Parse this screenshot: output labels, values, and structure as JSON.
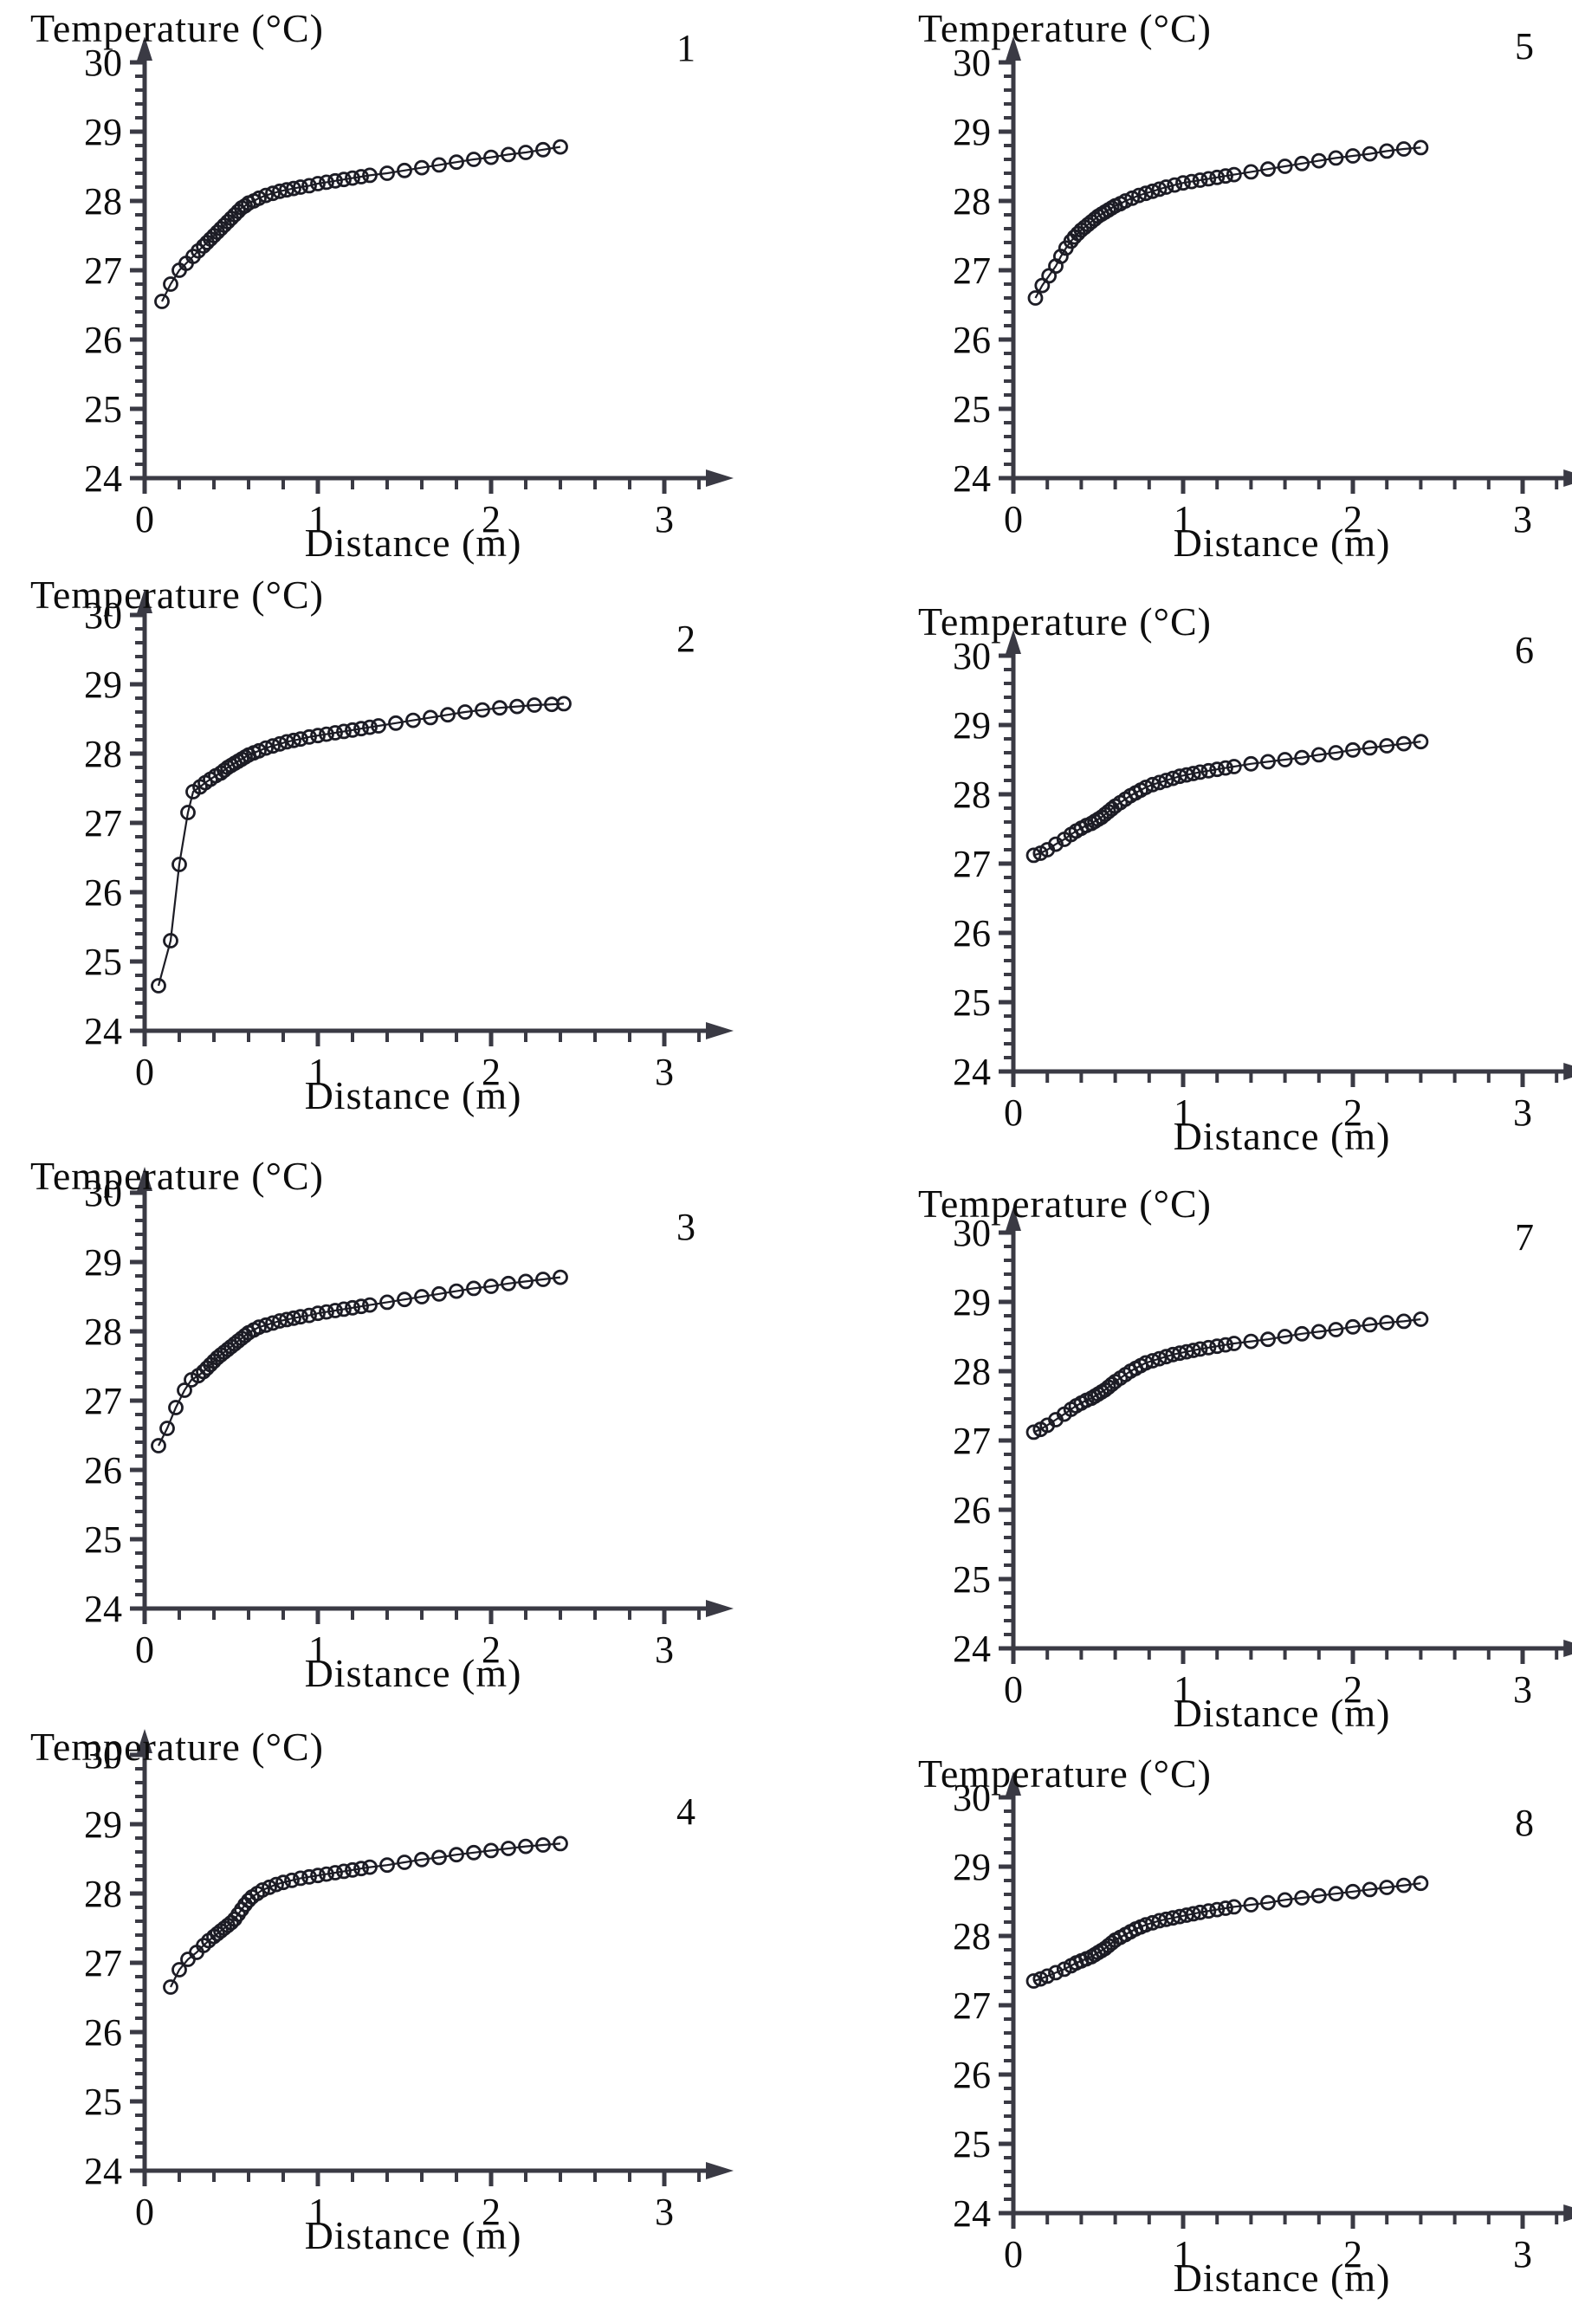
{
  "figure": {
    "ylabel": "Temperature (°C)",
    "xlabel": "Distance (m)",
    "axis_color": "#3a3a44",
    "marker_color": "#1c1c25",
    "text_color": "#0d0d0d",
    "y_ticks": [
      24,
      25,
      26,
      27,
      28,
      29,
      30
    ],
    "x_ticks": [
      0,
      1,
      2,
      3
    ],
    "y_minor_step": 0.2,
    "x_minor_step": 0.2,
    "ylim": [
      24,
      30.4
    ],
    "xlim": [
      0,
      3.3
    ],
    "grid": false,
    "legend": "none",
    "marker": "open-circle"
  },
  "chart_data": [
    {
      "type": "scatter",
      "line": true,
      "label": "1",
      "ylabel": "Temperature (°C)",
      "xlabel": "Distance (m)",
      "xlim": [
        0,
        3.3
      ],
      "ylim": [
        24,
        30.4
      ],
      "x": [
        0.1,
        0.15,
        0.2,
        0.24,
        0.28,
        0.31,
        0.34,
        0.36,
        0.38,
        0.4,
        0.42,
        0.44,
        0.46,
        0.48,
        0.5,
        0.52,
        0.54,
        0.56,
        0.58,
        0.6,
        0.63,
        0.66,
        0.7,
        0.74,
        0.78,
        0.82,
        0.86,
        0.9,
        0.95,
        1.0,
        1.05,
        1.1,
        1.15,
        1.2,
        1.25,
        1.3,
        1.4,
        1.5,
        1.6,
        1.7,
        1.8,
        1.9,
        2.0,
        2.1,
        2.2,
        2.3,
        2.4
      ],
      "y": [
        26.55,
        26.8,
        27.0,
        27.1,
        27.2,
        27.28,
        27.35,
        27.4,
        27.45,
        27.5,
        27.55,
        27.6,
        27.65,
        27.7,
        27.75,
        27.8,
        27.85,
        27.9,
        27.93,
        27.97,
        28.0,
        28.04,
        28.08,
        28.11,
        28.14,
        28.16,
        28.18,
        28.2,
        28.22,
        28.25,
        28.27,
        28.29,
        28.31,
        28.33,
        28.35,
        28.37,
        28.4,
        28.44,
        28.48,
        28.52,
        28.56,
        28.6,
        28.63,
        28.67,
        28.7,
        28.74,
        28.78
      ]
    },
    {
      "type": "scatter",
      "line": true,
      "label": "2",
      "ylabel": "Temperature (°C)",
      "xlabel": "Distance (m)",
      "xlim": [
        0,
        3.3
      ],
      "ylim": [
        24,
        30.4
      ],
      "x": [
        0.08,
        0.15,
        0.2,
        0.25,
        0.28,
        0.32,
        0.35,
        0.38,
        0.41,
        0.44,
        0.46,
        0.48,
        0.5,
        0.52,
        0.54,
        0.56,
        0.58,
        0.6,
        0.63,
        0.66,
        0.7,
        0.74,
        0.78,
        0.82,
        0.86,
        0.9,
        0.95,
        1.0,
        1.05,
        1.1,
        1.15,
        1.2,
        1.25,
        1.3,
        1.35,
        1.45,
        1.55,
        1.65,
        1.75,
        1.85,
        1.95,
        2.05,
        2.15,
        2.25,
        2.35,
        2.42
      ],
      "y": [
        24.65,
        25.3,
        26.4,
        27.15,
        27.45,
        27.52,
        27.58,
        27.63,
        27.68,
        27.72,
        27.76,
        27.8,
        27.83,
        27.86,
        27.89,
        27.92,
        27.95,
        27.98,
        28.01,
        28.04,
        28.08,
        28.11,
        28.14,
        28.17,
        28.19,
        28.21,
        28.24,
        28.26,
        28.28,
        28.3,
        28.32,
        28.34,
        28.36,
        28.38,
        28.4,
        28.44,
        28.48,
        28.52,
        28.56,
        28.6,
        28.63,
        28.66,
        28.68,
        28.7,
        28.71,
        28.72
      ]
    },
    {
      "type": "scatter",
      "line": true,
      "label": "3",
      "ylabel": "Temperature (°C)",
      "xlabel": "Distance (m)",
      "xlim": [
        0,
        3.3
      ],
      "ylim": [
        24,
        30.4
      ],
      "x": [
        0.08,
        0.13,
        0.18,
        0.23,
        0.27,
        0.31,
        0.34,
        0.36,
        0.38,
        0.4,
        0.42,
        0.44,
        0.46,
        0.48,
        0.5,
        0.52,
        0.54,
        0.56,
        0.58,
        0.6,
        0.63,
        0.66,
        0.7,
        0.74,
        0.78,
        0.82,
        0.86,
        0.9,
        0.95,
        1.0,
        1.05,
        1.1,
        1.15,
        1.2,
        1.25,
        1.3,
        1.4,
        1.5,
        1.6,
        1.7,
        1.8,
        1.9,
        2.0,
        2.1,
        2.2,
        2.3,
        2.4
      ],
      "y": [
        26.35,
        26.6,
        26.9,
        27.15,
        27.3,
        27.36,
        27.42,
        27.47,
        27.52,
        27.57,
        27.62,
        27.66,
        27.7,
        27.74,
        27.78,
        27.82,
        27.86,
        27.9,
        27.94,
        27.98,
        28.02,
        28.06,
        28.09,
        28.12,
        28.15,
        28.17,
        28.19,
        28.21,
        28.23,
        28.26,
        28.28,
        28.3,
        28.32,
        28.34,
        28.36,
        28.38,
        28.42,
        28.46,
        28.5,
        28.54,
        28.58,
        28.62,
        28.65,
        28.69,
        28.72,
        28.75,
        28.78
      ]
    },
    {
      "type": "scatter",
      "line": true,
      "label": "4",
      "ylabel": "Temperature (°C)",
      "xlabel": "Distance (m)",
      "xlim": [
        0,
        3.3
      ],
      "ylim": [
        24,
        30.4
      ],
      "x": [
        0.15,
        0.2,
        0.25,
        0.3,
        0.34,
        0.37,
        0.4,
        0.42,
        0.44,
        0.46,
        0.48,
        0.5,
        0.52,
        0.54,
        0.56,
        0.58,
        0.6,
        0.62,
        0.65,
        0.68,
        0.72,
        0.76,
        0.8,
        0.85,
        0.9,
        0.95,
        1.0,
        1.05,
        1.1,
        1.15,
        1.2,
        1.25,
        1.3,
        1.4,
        1.5,
        1.6,
        1.7,
        1.8,
        1.9,
        2.0,
        2.1,
        2.2,
        2.3,
        2.4
      ],
      "y": [
        26.65,
        26.9,
        27.05,
        27.15,
        27.25,
        27.32,
        27.38,
        27.42,
        27.46,
        27.5,
        27.54,
        27.58,
        27.63,
        27.7,
        27.77,
        27.84,
        27.9,
        27.95,
        28.0,
        28.05,
        28.09,
        28.13,
        28.16,
        28.19,
        28.22,
        28.24,
        28.26,
        28.28,
        28.3,
        28.32,
        28.34,
        28.36,
        28.38,
        28.41,
        28.45,
        28.49,
        28.52,
        28.56,
        28.59,
        28.62,
        28.65,
        28.68,
        28.7,
        28.72
      ]
    },
    {
      "type": "scatter",
      "line": true,
      "label": "5",
      "ylabel": "Temperature (°C)",
      "xlabel": "Distance (m)",
      "xlim": [
        0,
        3.3
      ],
      "ylim": [
        24,
        30.4
      ],
      "x": [
        0.13,
        0.17,
        0.21,
        0.25,
        0.28,
        0.31,
        0.34,
        0.36,
        0.38,
        0.4,
        0.42,
        0.44,
        0.46,
        0.48,
        0.5,
        0.52,
        0.54,
        0.56,
        0.58,
        0.6,
        0.63,
        0.66,
        0.7,
        0.74,
        0.78,
        0.82,
        0.86,
        0.9,
        0.95,
        1.0,
        1.05,
        1.1,
        1.15,
        1.2,
        1.25,
        1.3,
        1.4,
        1.5,
        1.6,
        1.7,
        1.8,
        1.9,
        2.0,
        2.1,
        2.2,
        2.3,
        2.4
      ],
      "y": [
        26.6,
        26.78,
        26.92,
        27.06,
        27.2,
        27.32,
        27.42,
        27.48,
        27.53,
        27.58,
        27.62,
        27.66,
        27.7,
        27.74,
        27.78,
        27.81,
        27.84,
        27.87,
        27.9,
        27.93,
        27.96,
        28.0,
        28.04,
        28.08,
        28.11,
        28.14,
        28.17,
        28.2,
        28.23,
        28.26,
        28.28,
        28.3,
        28.32,
        28.34,
        28.36,
        28.38,
        28.42,
        28.46,
        28.5,
        28.54,
        28.58,
        28.62,
        28.65,
        28.68,
        28.72,
        28.75,
        28.77
      ]
    },
    {
      "type": "scatter",
      "line": true,
      "label": "6",
      "ylabel": "Temperature (°C)",
      "xlabel": "Distance (m)",
      "xlim": [
        0,
        3.3
      ],
      "ylim": [
        24,
        30.4
      ],
      "x": [
        0.12,
        0.16,
        0.2,
        0.25,
        0.3,
        0.34,
        0.37,
        0.4,
        0.43,
        0.46,
        0.48,
        0.5,
        0.52,
        0.54,
        0.56,
        0.58,
        0.6,
        0.63,
        0.66,
        0.69,
        0.72,
        0.75,
        0.78,
        0.82,
        0.86,
        0.9,
        0.94,
        0.98,
        1.02,
        1.06,
        1.1,
        1.15,
        1.2,
        1.25,
        1.3,
        1.4,
        1.5,
        1.6,
        1.7,
        1.8,
        1.9,
        2.0,
        2.1,
        2.2,
        2.3,
        2.4
      ],
      "y": [
        27.12,
        27.15,
        27.2,
        27.28,
        27.35,
        27.42,
        27.47,
        27.51,
        27.55,
        27.58,
        27.61,
        27.64,
        27.67,
        27.71,
        27.75,
        27.79,
        27.83,
        27.88,
        27.93,
        27.98,
        28.02,
        28.06,
        28.1,
        28.14,
        28.17,
        28.2,
        28.23,
        28.26,
        28.28,
        28.3,
        28.32,
        28.34,
        28.36,
        28.38,
        28.4,
        28.44,
        28.47,
        28.5,
        28.53,
        28.57,
        28.6,
        28.64,
        28.67,
        28.7,
        28.73,
        28.76
      ]
    },
    {
      "type": "scatter",
      "line": true,
      "label": "7",
      "ylabel": "Temperature (°C)",
      "xlabel": "Distance (m)",
      "xlim": [
        0,
        3.3
      ],
      "ylim": [
        24,
        30.4
      ],
      "x": [
        0.12,
        0.16,
        0.2,
        0.25,
        0.3,
        0.34,
        0.37,
        0.4,
        0.43,
        0.46,
        0.48,
        0.5,
        0.52,
        0.54,
        0.56,
        0.58,
        0.6,
        0.63,
        0.66,
        0.69,
        0.72,
        0.75,
        0.78,
        0.82,
        0.86,
        0.9,
        0.94,
        0.98,
        1.02,
        1.06,
        1.1,
        1.15,
        1.2,
        1.25,
        1.3,
        1.4,
        1.5,
        1.6,
        1.7,
        1.8,
        1.9,
        2.0,
        2.1,
        2.2,
        2.3,
        2.4
      ],
      "y": [
        27.12,
        27.16,
        27.22,
        27.3,
        27.38,
        27.45,
        27.5,
        27.54,
        27.58,
        27.61,
        27.64,
        27.67,
        27.7,
        27.73,
        27.77,
        27.81,
        27.85,
        27.9,
        27.95,
        28.0,
        28.04,
        28.08,
        28.12,
        28.15,
        28.18,
        28.21,
        28.24,
        28.26,
        28.28,
        28.3,
        28.32,
        28.34,
        28.36,
        28.38,
        28.4,
        28.43,
        28.46,
        28.5,
        28.54,
        28.57,
        28.6,
        28.64,
        28.67,
        28.7,
        28.72,
        28.75
      ]
    },
    {
      "type": "scatter",
      "line": true,
      "label": "8",
      "ylabel": "Temperature (°C)",
      "xlabel": "Distance (m)",
      "xlim": [
        0,
        3.3
      ],
      "ylim": [
        24,
        30.4
      ],
      "x": [
        0.12,
        0.16,
        0.2,
        0.25,
        0.3,
        0.34,
        0.37,
        0.4,
        0.43,
        0.46,
        0.48,
        0.5,
        0.52,
        0.54,
        0.56,
        0.58,
        0.6,
        0.63,
        0.66,
        0.69,
        0.72,
        0.75,
        0.78,
        0.82,
        0.86,
        0.9,
        0.94,
        0.98,
        1.02,
        1.06,
        1.1,
        1.15,
        1.2,
        1.25,
        1.3,
        1.4,
        1.5,
        1.6,
        1.7,
        1.8,
        1.9,
        2.0,
        2.1,
        2.2,
        2.3,
        2.4
      ],
      "y": [
        27.35,
        27.38,
        27.42,
        27.47,
        27.52,
        27.57,
        27.61,
        27.64,
        27.67,
        27.7,
        27.73,
        27.76,
        27.79,
        27.82,
        27.86,
        27.9,
        27.94,
        27.98,
        28.02,
        28.06,
        28.1,
        28.13,
        28.16,
        28.19,
        28.22,
        28.24,
        28.26,
        28.28,
        28.3,
        28.32,
        28.34,
        28.36,
        28.38,
        28.4,
        28.42,
        28.45,
        28.48,
        28.52,
        28.55,
        28.58,
        28.61,
        28.64,
        28.67,
        28.7,
        28.73,
        28.76
      ]
    }
  ]
}
